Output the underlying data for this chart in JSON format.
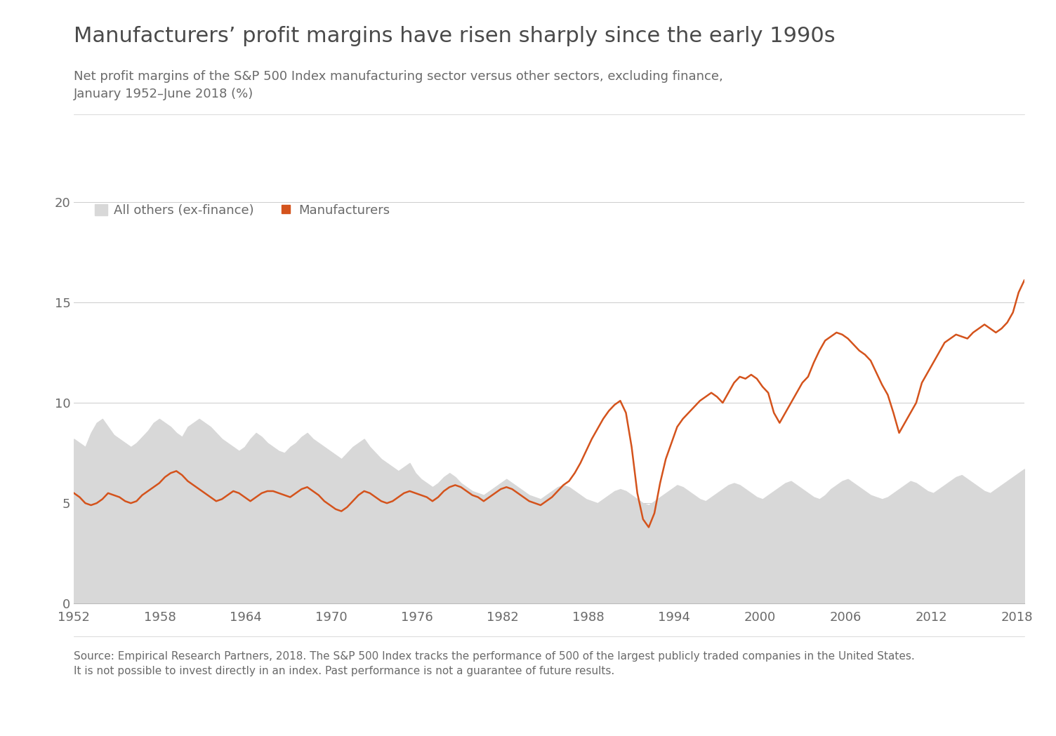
{
  "title": "Manufacturers’ profit margins have risen sharply since the early 1990s",
  "subtitle": "Net profit margins of the S&P 500 Index manufacturing sector versus other sectors, excluding finance,\nJanuary 1952–June 2018 (%)",
  "source_text": "Source: Empirical Research Partners, 2018. The S&P 500 Index tracks the performance of 500 of the largest publicly traded companies in the United States.\nIt is not possible to invest directly in an index. Past performance is not a guarantee of future results.",
  "legend_others": "All others (ex-finance)",
  "legend_mfg": "Manufacturers",
  "title_fontsize": 22,
  "subtitle_fontsize": 13,
  "source_fontsize": 11,
  "axis_label_fontsize": 13,
  "legend_fontsize": 13,
  "title_color": "#4a4a4a",
  "subtitle_color": "#6a6a6a",
  "source_color": "#6a6a6a",
  "tick_color": "#6a6a6a",
  "area_color": "#d8d8d8",
  "line_color": "#d4531c",
  "background_color": "#ffffff",
  "ylim": [
    0,
    22
  ],
  "yticks": [
    0,
    5,
    10,
    15,
    20
  ],
  "xticks": [
    1952,
    1958,
    1964,
    1970,
    1976,
    1982,
    1988,
    1994,
    2000,
    2006,
    2012,
    2018
  ],
  "years_start": 1952,
  "years_end": 2018.5,
  "others_data": [
    8.2,
    8.0,
    7.8,
    8.5,
    9.0,
    9.2,
    8.8,
    8.4,
    8.2,
    8.0,
    7.8,
    8.0,
    8.3,
    8.6,
    9.0,
    9.2,
    9.0,
    8.8,
    8.5,
    8.3,
    8.8,
    9.0,
    9.2,
    9.0,
    8.8,
    8.5,
    8.2,
    8.0,
    7.8,
    7.6,
    7.8,
    8.2,
    8.5,
    8.3,
    8.0,
    7.8,
    7.6,
    7.5,
    7.8,
    8.0,
    8.3,
    8.5,
    8.2,
    8.0,
    7.8,
    7.6,
    7.4,
    7.2,
    7.5,
    7.8,
    8.0,
    8.2,
    7.8,
    7.5,
    7.2,
    7.0,
    6.8,
    6.6,
    6.8,
    7.0,
    6.5,
    6.2,
    6.0,
    5.8,
    6.0,
    6.3,
    6.5,
    6.3,
    6.0,
    5.8,
    5.6,
    5.5,
    5.4,
    5.6,
    5.8,
    6.0,
    6.2,
    6.0,
    5.8,
    5.6,
    5.4,
    5.3,
    5.2,
    5.4,
    5.6,
    5.8,
    5.9,
    5.8,
    5.6,
    5.4,
    5.2,
    5.1,
    5.0,
    5.2,
    5.4,
    5.6,
    5.7,
    5.6,
    5.4,
    5.2,
    5.0,
    4.9,
    5.1,
    5.3,
    5.5,
    5.7,
    5.9,
    5.8,
    5.6,
    5.4,
    5.2,
    5.1,
    5.3,
    5.5,
    5.7,
    5.9,
    6.0,
    5.9,
    5.7,
    5.5,
    5.3,
    5.2,
    5.4,
    5.6,
    5.8,
    6.0,
    6.1,
    5.9,
    5.7,
    5.5,
    5.3,
    5.2,
    5.4,
    5.7,
    5.9,
    6.1,
    6.2,
    6.0,
    5.8,
    5.6,
    5.4,
    5.3,
    5.2,
    5.3,
    5.5,
    5.7,
    5.9,
    6.1,
    6.0,
    5.8,
    5.6,
    5.5,
    5.7,
    5.9,
    6.1,
    6.3,
    6.4,
    6.2,
    6.0,
    5.8,
    5.6,
    5.5,
    5.7,
    5.9,
    6.1,
    6.3,
    6.5,
    6.7
  ],
  "mfg_data": [
    5.5,
    5.3,
    5.0,
    4.9,
    5.0,
    5.2,
    5.5,
    5.4,
    5.3,
    5.1,
    5.0,
    5.1,
    5.4,
    5.6,
    5.8,
    6.0,
    6.3,
    6.5,
    6.6,
    6.4,
    6.1,
    5.9,
    5.7,
    5.5,
    5.3,
    5.1,
    5.2,
    5.4,
    5.6,
    5.5,
    5.3,
    5.1,
    5.3,
    5.5,
    5.6,
    5.6,
    5.5,
    5.4,
    5.3,
    5.5,
    5.7,
    5.8,
    5.6,
    5.4,
    5.1,
    4.9,
    4.7,
    4.6,
    4.8,
    5.1,
    5.4,
    5.6,
    5.5,
    5.3,
    5.1,
    5.0,
    5.1,
    5.3,
    5.5,
    5.6,
    5.5,
    5.4,
    5.3,
    5.1,
    5.3,
    5.6,
    5.8,
    5.9,
    5.8,
    5.6,
    5.4,
    5.3,
    5.1,
    5.3,
    5.5,
    5.7,
    5.8,
    5.7,
    5.5,
    5.3,
    5.1,
    5.0,
    4.9,
    5.1,
    5.3,
    5.6,
    5.9,
    6.1,
    6.5,
    7.0,
    7.6,
    8.2,
    8.7,
    9.2,
    9.6,
    9.9,
    10.1,
    9.5,
    7.8,
    5.5,
    4.2,
    3.8,
    4.5,
    6.0,
    7.2,
    8.0,
    8.8,
    9.2,
    9.5,
    9.8,
    10.1,
    10.3,
    10.5,
    10.3,
    10.0,
    10.5,
    11.0,
    11.3,
    11.2,
    11.4,
    11.2,
    10.8,
    10.5,
    9.5,
    9.0,
    9.5,
    10.0,
    10.5,
    11.0,
    11.3,
    12.0,
    12.6,
    13.1,
    13.3,
    13.5,
    13.4,
    13.2,
    12.9,
    12.6,
    12.4,
    12.1,
    11.5,
    10.9,
    10.4,
    9.5,
    8.5,
    9.0,
    9.5,
    10.0,
    11.0,
    11.5,
    12.0,
    12.5,
    13.0,
    13.2,
    13.4,
    13.3,
    13.2,
    13.5,
    13.7,
    13.9,
    13.7,
    13.5,
    13.7,
    14.0,
    14.5,
    15.5,
    16.1
  ]
}
